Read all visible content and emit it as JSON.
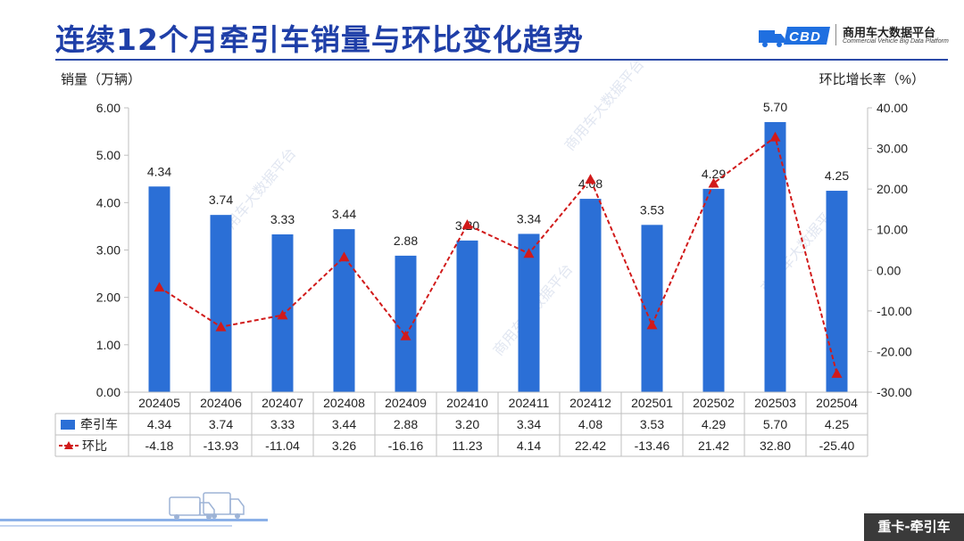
{
  "slide": {
    "title": "连续12个月牵引车销量与环比变化趋势",
    "brand_name": "商用车大数据平台",
    "brand_sub": "Commercial Vehicle Big Data Platform",
    "watermark": "商用车大数据平台",
    "corner_tag": "重卡-牵引车"
  },
  "chart_data": {
    "type": "bar",
    "categories": [
      "202405",
      "202406",
      "202407",
      "202408",
      "202409",
      "202410",
      "202411",
      "202412",
      "202501",
      "202502",
      "202503",
      "202504"
    ],
    "series": [
      {
        "name": "牵引车",
        "type": "bar",
        "axis": "left",
        "color": "#2b6fd6",
        "values": [
          4.34,
          3.74,
          3.33,
          3.44,
          2.88,
          3.2,
          3.34,
          4.08,
          3.53,
          4.29,
          5.7,
          4.25
        ],
        "labels": [
          "4.34",
          "3.74",
          "3.33",
          "3.44",
          "2.88",
          "3.20",
          "3.34",
          "4.08",
          "3.53",
          "4.29",
          "5.70",
          "4.25"
        ]
      },
      {
        "name": "环比",
        "type": "line",
        "axis": "right",
        "color": "#d11a1a",
        "style": "dashed",
        "marker": "triangle",
        "values": [
          -4.18,
          -13.93,
          -11.04,
          3.26,
          -16.16,
          11.23,
          4.14,
          22.42,
          -13.46,
          21.42,
          32.8,
          -25.4
        ],
        "labels": [
          "-4.18",
          "-13.93",
          "-11.04",
          "3.26",
          "-16.16",
          "11.23",
          "4.14",
          "22.42",
          "-13.46",
          "21.42",
          "32.80",
          "-25.40"
        ]
      }
    ],
    "ylabel_left": "销量（万辆）",
    "ylabel_right": "环比增长率（%）",
    "ylim_left": [
      0,
      6
    ],
    "ylim_right": [
      -30,
      40
    ],
    "yticks_left": [
      "0.00",
      "1.00",
      "2.00",
      "3.00",
      "4.00",
      "5.00",
      "6.00"
    ],
    "yticks_right": [
      "-30.00",
      "-20.00",
      "-10.00",
      "0.00",
      "10.00",
      "20.00",
      "30.00",
      "40.00"
    ],
    "grid": false,
    "legend": "data-table"
  }
}
